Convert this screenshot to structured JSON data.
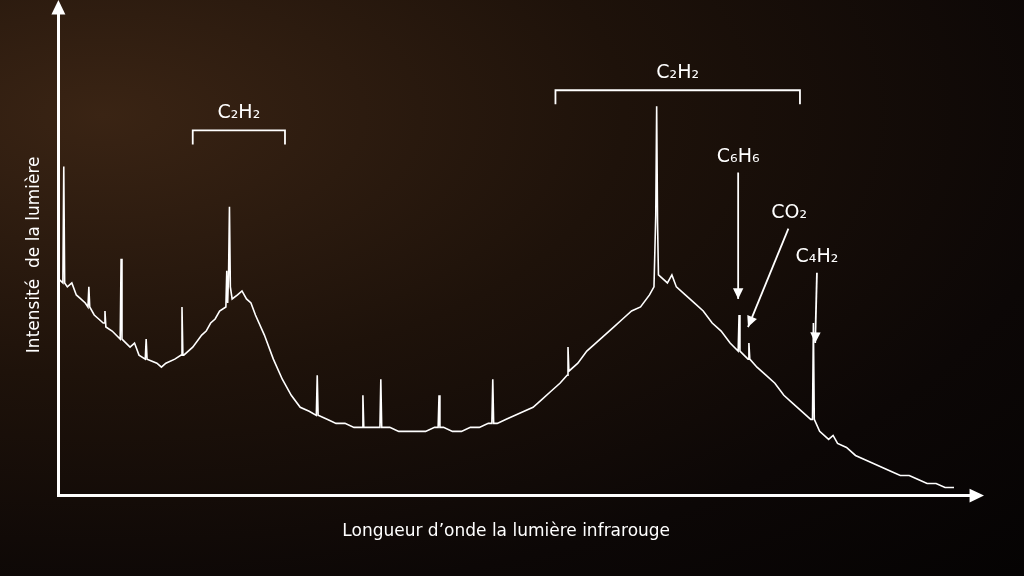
{
  "chart_data": {
    "type": "line",
    "x_label": "Longueur d’onde la lumière infrarouge",
    "y_label": "Intensité  de la lumière",
    "color": "#ffffff",
    "grid": false,
    "tick_labels": false,
    "xlim": [
      0,
      100
    ],
    "ylim": [
      0,
      120
    ],
    "x": [
      0,
      0.5,
      0.6,
      0.7,
      1,
      1.5,
      2,
      2.5,
      3,
      3.3,
      3.4,
      3.5,
      4,
      4.5,
      5,
      5.1,
      5.2,
      5.3,
      6,
      6.9,
      7,
      7.1,
      8,
      8.5,
      9,
      9.7,
      9.8,
      9.9,
      10,
      11,
      11.5,
      12,
      13,
      13.7,
      13.8,
      13.9,
      14,
      15,
      16,
      16.5,
      17,
      17.5,
      18,
      18.7,
      18.8,
      18.9,
      19,
      19.1,
      19.2,
      19.4,
      20,
      20.5,
      21,
      21.5,
      22,
      23,
      24,
      25,
      26,
      27,
      28,
      28.8,
      28.9,
      29,
      30,
      31,
      32,
      33,
      33.9,
      34,
      34.1,
      35,
      35.9,
      36,
      36.1,
      37,
      38,
      39,
      40,
      41,
      42,
      42.4,
      42.5,
      42.6,
      43,
      44,
      45,
      46,
      47,
      48,
      48.4,
      48.5,
      48.6,
      49,
      50,
      51,
      52,
      53,
      54,
      55,
      56,
      56.8,
      56.9,
      57,
      58,
      59,
      60,
      61,
      62,
      63,
      64,
      65,
      66,
      66.5,
      66.7,
      66.8,
      66.9,
      67,
      68,
      68.5,
      69,
      70,
      71,
      72,
      73,
      74,
      75,
      75.9,
      76,
      76.1,
      77,
      77.1,
      77.2,
      78,
      79,
      80,
      81,
      82,
      83,
      84,
      84.2,
      84.3,
      84.4,
      85,
      86,
      86.5,
      87,
      88,
      89,
      90,
      91,
      92,
      93,
      94,
      95,
      96,
      97,
      98,
      99,
      100
    ],
    "values": [
      54,
      53,
      82,
      53,
      52,
      53,
      50,
      49,
      48,
      47,
      52,
      47,
      45,
      44,
      43,
      43,
      46,
      42,
      41,
      39,
      59,
      39,
      37,
      38,
      35,
      34,
      39,
      34,
      34,
      33,
      32,
      33,
      34,
      35,
      47,
      35,
      35,
      37,
      40,
      41,
      43,
      44,
      46,
      47,
      56,
      48,
      55,
      72,
      52,
      49,
      50,
      51,
      49,
      48,
      45,
      40,
      34,
      29,
      25,
      22,
      21,
      20,
      30,
      20,
      19,
      18,
      18,
      17,
      17,
      25,
      17,
      17,
      17,
      29,
      17,
      17,
      16,
      16,
      16,
      16,
      17,
      17,
      25,
      17,
      17,
      16,
      16,
      17,
      17,
      18,
      18,
      29,
      18,
      18,
      19,
      20,
      21,
      22,
      24,
      26,
      28,
      30,
      37,
      31,
      33,
      36,
      38,
      40,
      42,
      44,
      46,
      47,
      50,
      52,
      70,
      97,
      68,
      55,
      53,
      55,
      52,
      50,
      48,
      46,
      43,
      41,
      38,
      36,
      45,
      36,
      34,
      38,
      34,
      32,
      30,
      28,
      25,
      23,
      21,
      19,
      19,
      43,
      19,
      16,
      14,
      15,
      13,
      12,
      10,
      9,
      8,
      7,
      6,
      5,
      5,
      4,
      3,
      3,
      2,
      2
    ],
    "annotations": [
      {
        "text": "C₂H₂",
        "bracket": [
          15,
          25.3
        ],
        "y": 91
      },
      {
        "text": "C₂H₂",
        "bracket": [
          55.5,
          82.8
        ],
        "y": 101
      },
      {
        "text": "C₆H₆",
        "x": 75.9,
        "y": 82,
        "arrow_to": [
          75.9,
          49
        ]
      },
      {
        "text": "CO₂",
        "x": 81.6,
        "y": 68,
        "arrow_to": [
          77,
          42
        ]
      },
      {
        "text": "C₄H₂",
        "x": 84.7,
        "y": 57,
        "arrow_to": [
          84.5,
          38
        ]
      }
    ]
  }
}
